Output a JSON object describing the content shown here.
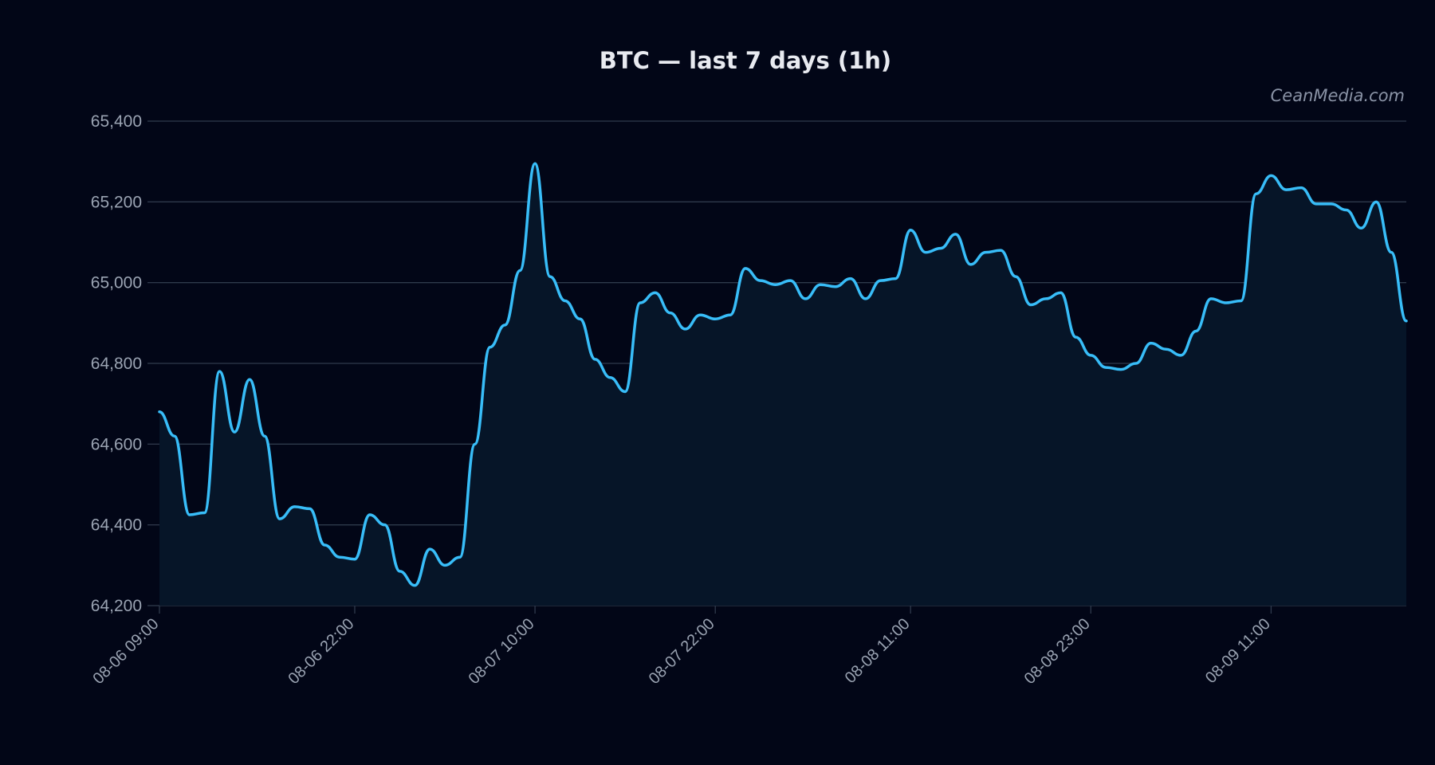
{
  "watermark": "CeanMedia.com",
  "colors": {
    "background": "#020617",
    "line": "#38bdf8",
    "area": "#061528",
    "grid": "#2f3a4c",
    "text": "#9aa3b2",
    "title": "#e8eaf0"
  },
  "chart_data": {
    "type": "area",
    "title": "BTC — last 7 days (1h)",
    "xlabel": "",
    "ylabel": "",
    "ylim": [
      64200,
      65400
    ],
    "grid": true,
    "y_ticks": [
      64200,
      64400,
      64600,
      64800,
      65000,
      65200,
      65400
    ],
    "y_tick_labels": [
      "64,200",
      "64,400",
      "64,600",
      "64,800",
      "65,000",
      "65,200",
      "65,400"
    ],
    "x_ticks": [
      {
        "index": 0,
        "label": "08-06 09:00"
      },
      {
        "index": 13,
        "label": "08-06 22:00"
      },
      {
        "index": 25,
        "label": "08-07 10:00"
      },
      {
        "index": 37,
        "label": "08-07 22:00"
      },
      {
        "index": 50,
        "label": "08-08 11:00"
      },
      {
        "index": 62,
        "label": "08-08 23:00"
      },
      {
        "index": 74,
        "label": "08-09 11:00"
      }
    ],
    "interval": "1h",
    "x_start": "08-06 09:00",
    "values": [
      64680,
      64620,
      64425,
      64430,
      64780,
      64630,
      64760,
      64620,
      64415,
      64445,
      64440,
      64350,
      64320,
      64315,
      64425,
      64400,
      64285,
      64250,
      64340,
      64300,
      64320,
      64600,
      64840,
      64895,
      65030,
      65295,
      65015,
      64955,
      64910,
      64810,
      64765,
      64730,
      64950,
      64975,
      64925,
      64885,
      64920,
      64910,
      64920,
      65035,
      65005,
      64995,
      65005,
      64960,
      64995,
      64990,
      65010,
      64960,
      65005,
      65010,
      65130,
      65075,
      65085,
      65120,
      65045,
      65075,
      65080,
      65015,
      64945,
      64960,
      64975,
      64865,
      64820,
      64790,
      64785,
      64800,
      64850,
      64835,
      64820,
      64880,
      64960,
      64950,
      64955,
      65220,
      65265,
      65230,
      65235,
      65195,
      65195,
      65180,
      65135,
      65200,
      65075,
      64905
    ]
  }
}
